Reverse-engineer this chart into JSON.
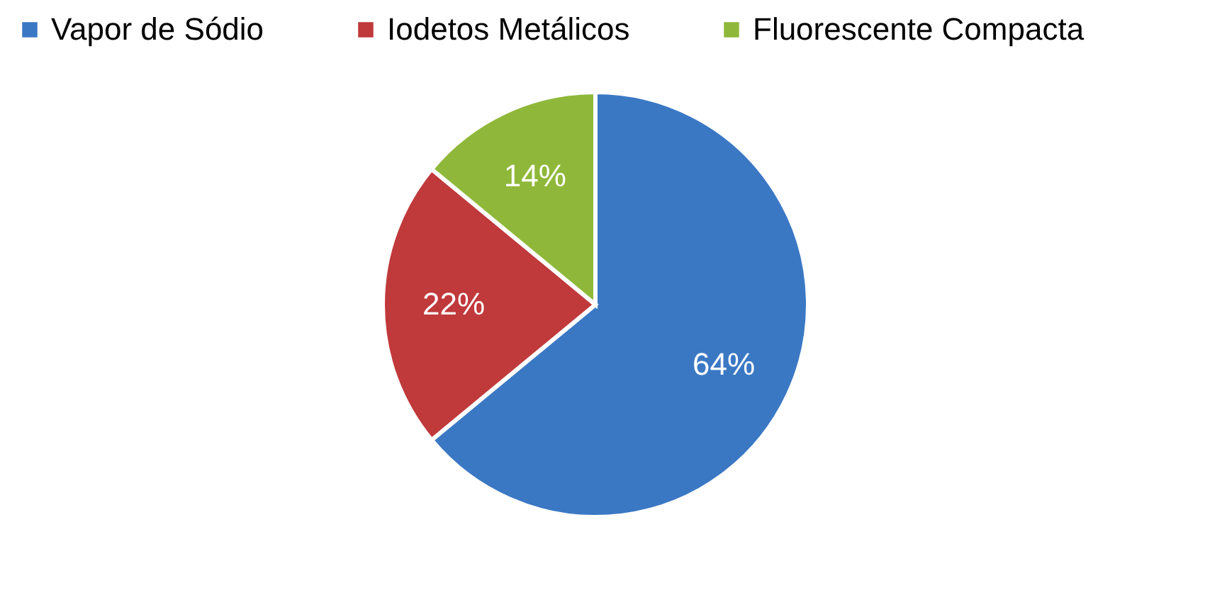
{
  "chart_data": {
    "type": "pie",
    "categories": [
      "Vapor de Sódio",
      "Iodetos Metálicos",
      "Fluorescente Compacta"
    ],
    "values": [
      64,
      22,
      14
    ],
    "value_labels": [
      "64%",
      "22%",
      "14%"
    ],
    "colors": [
      "#3b78c4",
      "#c0393b",
      "#8fb83a"
    ],
    "legend": "top"
  }
}
